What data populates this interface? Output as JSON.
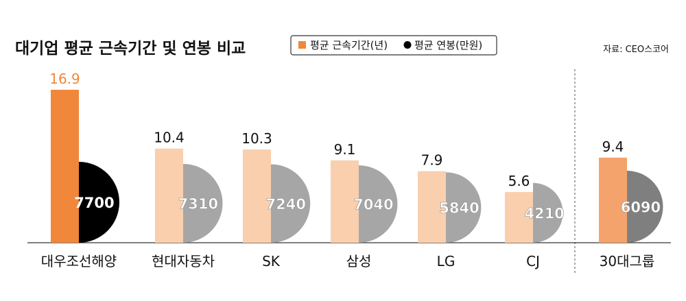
{
  "chart_data": {
    "type": "bar",
    "title": "대기업 평균 근속기간 및 연봉 비교",
    "source": "자료: CEO스코어",
    "legend": [
      {
        "label": "평균 근속기간(년)",
        "color": "#f0873a",
        "marker": "square"
      },
      {
        "label": "평균 연봉(만원)",
        "color": "#000000",
        "marker": "circle"
      }
    ],
    "legend_position": "top-center",
    "categories": [
      "대우조선해양",
      "현대자동차",
      "SK",
      "삼성",
      "LG",
      "CJ",
      "30대그룹"
    ],
    "series": [
      {
        "name": "평균 근속기간(년)",
        "values": [
          16.9,
          10.4,
          10.3,
          9.1,
          7.9,
          5.6,
          9.4
        ]
      },
      {
        "name": "평균 연봉(만원)",
        "values": [
          7700,
          7310,
          7240,
          7040,
          5840,
          4210,
          6090
        ]
      }
    ],
    "duration_label_colors": [
      "#f0873a",
      "#111111",
      "#111111",
      "#111111",
      "#111111",
      "#111111",
      "#111111"
    ],
    "bar_colors": [
      "#f0873a",
      "#f9cfae",
      "#f9cfae",
      "#f9cfae",
      "#f9cfae",
      "#f9cfae",
      "#f3a36b"
    ],
    "circle_colors": [
      "#000000",
      "#a6a6a6",
      "#a6a6a6",
      "#a6a6a6",
      "#a6a6a6",
      "#a6a6a6",
      "#7f7f7f"
    ],
    "separator_before": "30대그룹",
    "ylim": [
      0,
      18
    ],
    "grid": false
  }
}
